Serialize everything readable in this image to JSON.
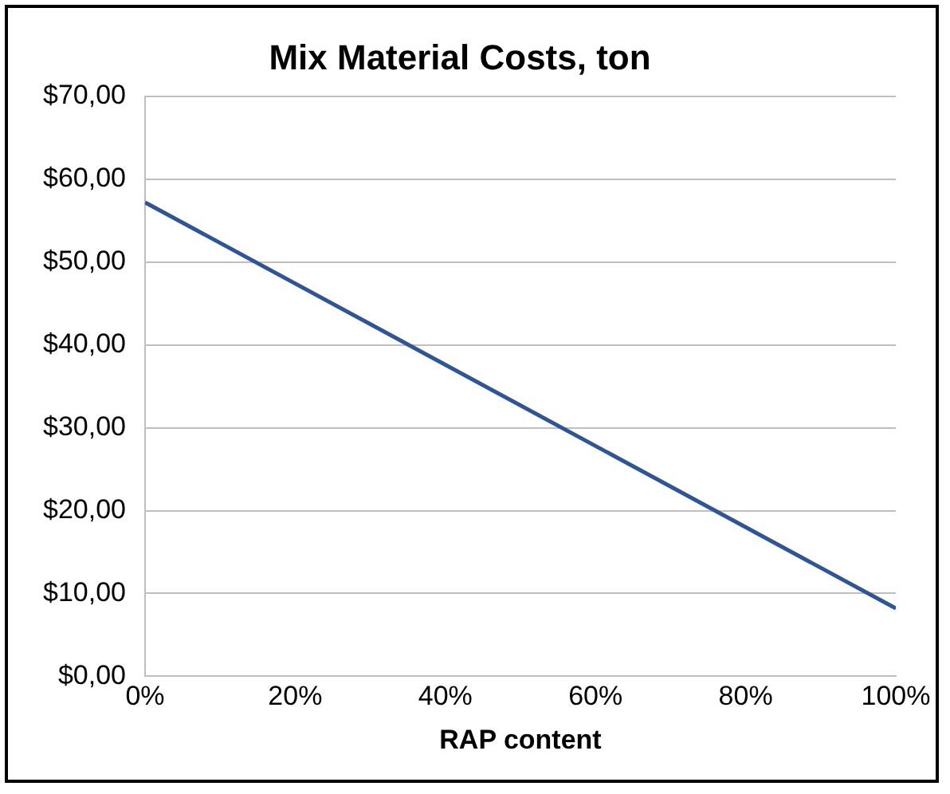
{
  "chart_data": {
    "type": "line",
    "title": "Mix Material Costs, ton",
    "xlabel": "RAP content",
    "x": [
      0,
      100
    ],
    "series": [
      {
        "color": "#2f5597",
        "values": [
          57.2,
          8.2
        ]
      }
    ],
    "xlim": [
      0,
      100
    ],
    "xticks": [
      {
        "value": 0,
        "label": "0%"
      },
      {
        "value": 20,
        "label": "20%"
      },
      {
        "value": 40,
        "label": "40%"
      },
      {
        "value": 60,
        "label": "60%"
      },
      {
        "value": 80,
        "label": "80%"
      },
      {
        "value": 100,
        "label": "100%"
      }
    ],
    "ylim": [
      0,
      70
    ],
    "yticks": [
      {
        "value": 0,
        "label": "$0,00"
      },
      {
        "value": 10,
        "label": "$10,00"
      },
      {
        "value": 20,
        "label": "$20,00"
      },
      {
        "value": 30,
        "label": "$30,00"
      },
      {
        "value": 40,
        "label": "$40,00"
      },
      {
        "value": 50,
        "label": "$50,00"
      },
      {
        "value": 60,
        "label": "$60,00"
      },
      {
        "value": 70,
        "label": "$70,00"
      }
    ],
    "grid": "y",
    "legend": false,
    "marker": "none",
    "line_style": "solid"
  }
}
